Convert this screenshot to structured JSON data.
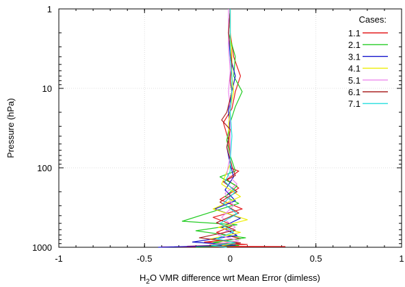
{
  "chart_data": {
    "type": "line",
    "xlabel_parts": {
      "pre": "H",
      "sub": "2",
      "post": "O VMR difference wrt Mean Error (dimless)"
    },
    "ylabel": "Pressure (hPa)",
    "xlim": [
      -1,
      1
    ],
    "ylim": [
      1000,
      1
    ],
    "y_scale": "log",
    "grid": true,
    "x_ticks": [
      -1,
      -0.5,
      0,
      0.5,
      1
    ],
    "x_tick_labels": [
      "-1",
      "-0.5",
      "0",
      "0.5",
      "1"
    ],
    "y_ticks": [
      1,
      10,
      100,
      1000
    ],
    "y_tick_labels": [
      "1",
      "10",
      "100",
      "1000"
    ],
    "legend_title": "Cases:",
    "legend_position": "top-right",
    "series": [
      {
        "name": "1.1",
        "color": "#e41a1c",
        "points": [
          [
            0.0,
            1
          ],
          [
            0.0,
            2
          ],
          [
            0.02,
            4
          ],
          [
            0.06,
            7
          ],
          [
            0.03,
            11
          ],
          [
            0.01,
            18
          ],
          [
            -0.04,
            27
          ],
          [
            -0.01,
            45
          ],
          [
            0.0,
            70
          ],
          [
            0.0,
            100
          ],
          [
            0.05,
            110
          ],
          [
            -0.02,
            140
          ],
          [
            0.05,
            180
          ],
          [
            -0.06,
            250
          ],
          [
            0.07,
            330
          ],
          [
            -0.1,
            420
          ],
          [
            0.02,
            530
          ],
          [
            -0.08,
            650
          ],
          [
            0.06,
            780
          ],
          [
            -0.15,
            860
          ],
          [
            0.1,
            920
          ],
          [
            -0.25,
            970
          ],
          [
            0.32,
            980
          ],
          [
            -0.4,
            990
          ]
        ]
      },
      {
        "name": "2.1",
        "color": "#22cc22",
        "points": [
          [
            0.0,
            1
          ],
          [
            -0.01,
            2
          ],
          [
            0.03,
            4
          ],
          [
            0.02,
            7
          ],
          [
            0.07,
            11
          ],
          [
            0.03,
            17
          ],
          [
            0.0,
            27
          ],
          [
            -0.02,
            45
          ],
          [
            0.0,
            70
          ],
          [
            0.03,
            110
          ],
          [
            -0.06,
            130
          ],
          [
            0.04,
            170
          ],
          [
            -0.03,
            230
          ],
          [
            0.05,
            280
          ],
          [
            -0.28,
            470
          ],
          [
            0.04,
            520
          ],
          [
            -0.2,
            620
          ],
          [
            0.09,
            760
          ],
          [
            -0.1,
            870
          ],
          [
            0.05,
            950
          ],
          [
            -0.2,
            990
          ]
        ]
      },
      {
        "name": "3.1",
        "color": "#1111cc",
        "points": [
          [
            0.0,
            1
          ],
          [
            -0.01,
            2
          ],
          [
            0.0,
            4
          ],
          [
            0.03,
            7
          ],
          [
            0.01,
            11
          ],
          [
            -0.01,
            19
          ],
          [
            0.0,
            35
          ],
          [
            -0.02,
            55
          ],
          [
            0.0,
            90
          ],
          [
            0.02,
            130
          ],
          [
            -0.03,
            190
          ],
          [
            0.03,
            260
          ],
          [
            -0.09,
            330
          ],
          [
            0.06,
            430
          ],
          [
            -0.05,
            560
          ],
          [
            0.04,
            710
          ],
          [
            -0.22,
            860
          ],
          [
            0.03,
            940
          ],
          [
            -0.42,
            1000
          ]
        ]
      },
      {
        "name": "4.1",
        "color": "#eeee00",
        "points": [
          [
            0.0,
            1
          ],
          [
            0.0,
            2
          ],
          [
            0.01,
            4
          ],
          [
            0.01,
            7
          ],
          [
            0.02,
            11
          ],
          [
            0.0,
            18
          ],
          [
            -0.01,
            30
          ],
          [
            0.0,
            55
          ],
          [
            0.0,
            90
          ],
          [
            -0.05,
            160
          ],
          [
            0.06,
            230
          ],
          [
            -0.1,
            330
          ],
          [
            0.1,
            450
          ],
          [
            -0.07,
            560
          ],
          [
            0.06,
            650
          ],
          [
            -0.12,
            790
          ],
          [
            0.04,
            880
          ],
          [
            -0.05,
            960
          ]
        ]
      },
      {
        "name": "5.1",
        "color": "#ee88ee",
        "points": [
          [
            -0.01,
            1
          ],
          [
            -0.01,
            3
          ],
          [
            0.0,
            6
          ],
          [
            -0.01,
            11
          ],
          [
            0.0,
            18
          ],
          [
            0.0,
            35
          ],
          [
            0.0,
            70
          ],
          [
            -0.02,
            120
          ],
          [
            0.04,
            160
          ],
          [
            -0.03,
            210
          ],
          [
            0.02,
            300
          ],
          [
            -0.05,
            420
          ],
          [
            0.03,
            560
          ],
          [
            -0.07,
            700
          ],
          [
            0.05,
            830
          ],
          [
            -0.1,
            920
          ]
        ]
      },
      {
        "name": "6.1",
        "color": "#aa2222",
        "points": [
          [
            0.0,
            1
          ],
          [
            -0.01,
            2
          ],
          [
            0.01,
            5
          ],
          [
            0.0,
            8
          ],
          [
            0.01,
            11
          ],
          [
            -0.02,
            20
          ],
          [
            -0.05,
            25
          ],
          [
            0.0,
            33
          ],
          [
            -0.02,
            55
          ],
          [
            0.01,
            95
          ],
          [
            0.03,
            125
          ],
          [
            -0.04,
            150
          ],
          [
            0.04,
            200
          ],
          [
            -0.06,
            270
          ],
          [
            0.05,
            370
          ],
          [
            -0.08,
            490
          ],
          [
            0.03,
            610
          ],
          [
            -0.18,
            760
          ],
          [
            0.06,
            880
          ],
          [
            -0.12,
            940
          ],
          [
            0.0,
            990
          ]
        ]
      },
      {
        "name": "7.1",
        "color": "#22dddd",
        "points": [
          [
            0.0,
            1
          ],
          [
            0.0,
            2
          ],
          [
            0.0,
            4
          ],
          [
            0.01,
            7
          ],
          [
            0.01,
            11
          ],
          [
            0.0,
            20
          ],
          [
            0.01,
            40
          ],
          [
            0.0,
            80
          ],
          [
            0.0,
            110
          ],
          [
            -0.03,
            150
          ],
          [
            0.03,
            200
          ],
          [
            -0.04,
            280
          ],
          [
            0.04,
            380
          ],
          [
            -0.06,
            500
          ],
          [
            0.02,
            640
          ],
          [
            -0.08,
            780
          ],
          [
            0.03,
            880
          ],
          [
            -0.11,
            950
          ],
          [
            -0.02,
            1000
          ]
        ]
      }
    ]
  }
}
